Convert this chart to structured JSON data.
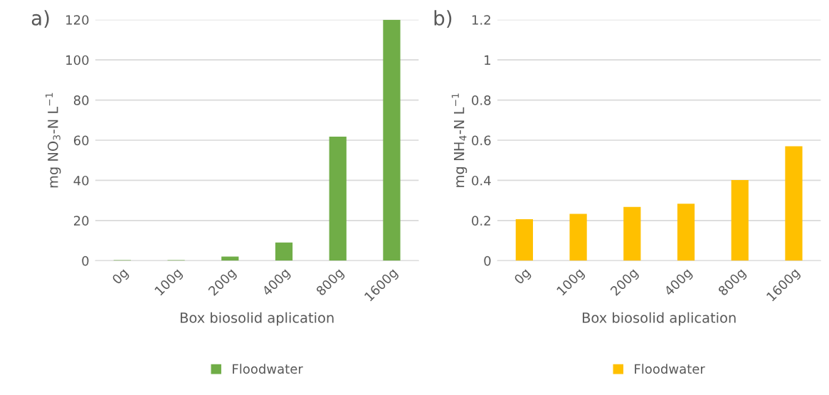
{
  "chart_data": [
    {
      "type": "bar",
      "title": "a)",
      "xlabel": "Box biosolid aplication",
      "ylabel": "mg NO$_{3}$-N L$^{−1}$",
      "categories": [
        "0g",
        "100g",
        "200g",
        "400g",
        "800g",
        "1600g"
      ],
      "series": [
        {
          "name": "Floodwater",
          "color": "#70ad47",
          "values": [
            0.3,
            0.3,
            2.1,
            9.1,
            61.8,
            120
          ]
        }
      ],
      "ylim": [
        0,
        120
      ],
      "yticks": [
        0,
        20,
        40,
        60,
        80,
        100,
        120
      ],
      "grid": "y",
      "legend": "bottom"
    },
    {
      "type": "bar",
      "title": "b)",
      "xlabel": "Box biosolid aplication",
      "ylabel": "mg NH$_{4}$-N L$^{−1}$",
      "categories": [
        "0g",
        "100g",
        "200g",
        "400g",
        "800g",
        "1600g"
      ],
      "series": [
        {
          "name": "Floodwater",
          "color": "#ffc000",
          "values": [
            0.207,
            0.233,
            0.268,
            0.284,
            0.402,
            0.57
          ]
        }
      ],
      "ylim": [
        0,
        1.2
      ],
      "yticks": [
        0,
        0.2,
        0.4,
        0.6,
        0.8,
        1,
        1.2
      ],
      "grid": "y",
      "legend": "bottom"
    }
  ]
}
